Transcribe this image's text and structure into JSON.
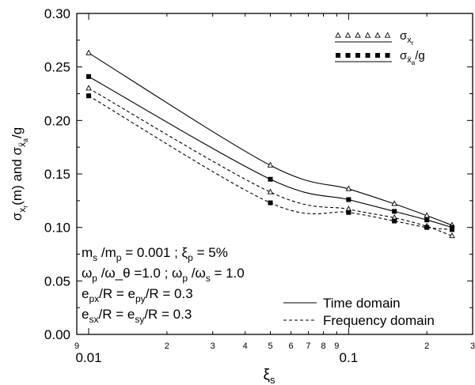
{
  "chart_data": {
    "type": "line",
    "x_scale": "log",
    "xlim": [
      0.009,
      0.3
    ],
    "ylim": [
      0.0,
      0.3
    ],
    "yticks": [
      "0.00",
      "0.05",
      "0.10",
      "0.15",
      "0.20",
      "0.25",
      "0.30"
    ],
    "xticks_major": [
      {
        "value": 0.01,
        "label": "0.01"
      },
      {
        "value": 0.1,
        "label": "0.1"
      }
    ],
    "xticks_minor": [
      {
        "value": 0.009,
        "label": "9"
      },
      {
        "value": 0.02,
        "label": "2"
      },
      {
        "value": 0.03,
        "label": "3"
      },
      {
        "value": 0.04,
        "label": "4"
      },
      {
        "value": 0.05,
        "label": "5"
      },
      {
        "value": 0.06,
        "label": "6"
      },
      {
        "value": 0.07,
        "label": "7"
      },
      {
        "value": 0.08,
        "label": "8"
      },
      {
        "value": 0.09,
        "label": "9"
      },
      {
        "value": 0.2,
        "label": "2"
      },
      {
        "value": 0.3,
        "label": "3"
      }
    ],
    "xlabel": {
      "base": "ξ",
      "sub": "s"
    },
    "ylabel": "σxr(m) and σẍa/g",
    "x": [
      0.01,
      0.05,
      0.1,
      0.15,
      0.2,
      0.25
    ],
    "series": [
      {
        "name": "σxr",
        "method": "Time domain",
        "marker": "triangle-open",
        "dash": "solid",
        "values": [
          0.263,
          0.158,
          0.136,
          0.122,
          0.111,
          0.102
        ]
      },
      {
        "name": "σẍa/g",
        "method": "Time domain",
        "marker": "square-filled",
        "dash": "solid",
        "values": [
          0.241,
          0.145,
          0.126,
          0.115,
          0.107,
          0.1
        ]
      },
      {
        "name": "σxr",
        "method": "Frequency domain",
        "marker": "triangle-open",
        "dash": "dashed",
        "values": [
          0.23,
          0.133,
          0.117,
          0.109,
          0.101,
          0.092
        ]
      },
      {
        "name": "σẍa/g",
        "method": "Frequency domain",
        "marker": "square-filled",
        "dash": "dashed",
        "values": [
          0.223,
          0.123,
          0.114,
          0.106,
          0.1,
          0.098
        ]
      }
    ],
    "legend_markers": [
      {
        "marker": "triangle-open",
        "label_base": "σ",
        "label_sub": "x",
        "label_subsub": "r",
        "label_suffix": ""
      },
      {
        "marker": "square-filled",
        "label_base": "σ",
        "label_sub": "ẍ",
        "label_subsub": "a",
        "label_suffix": "/g"
      }
    ],
    "legend_lines": [
      {
        "dash": "solid",
        "label": "Time domain"
      },
      {
        "dash": "dashed",
        "label": "Frequency domain"
      }
    ],
    "annotation_lines": [
      "m_s /m_p = 0.001 ; ξ_p = 5%",
      "ω_p /ω_θ =1.0 ; ω_p /ω_s = 1.0",
      "e_px/R = e_py/R = 0.3",
      "e_sx/R = e_sy/R = 0.3"
    ]
  }
}
